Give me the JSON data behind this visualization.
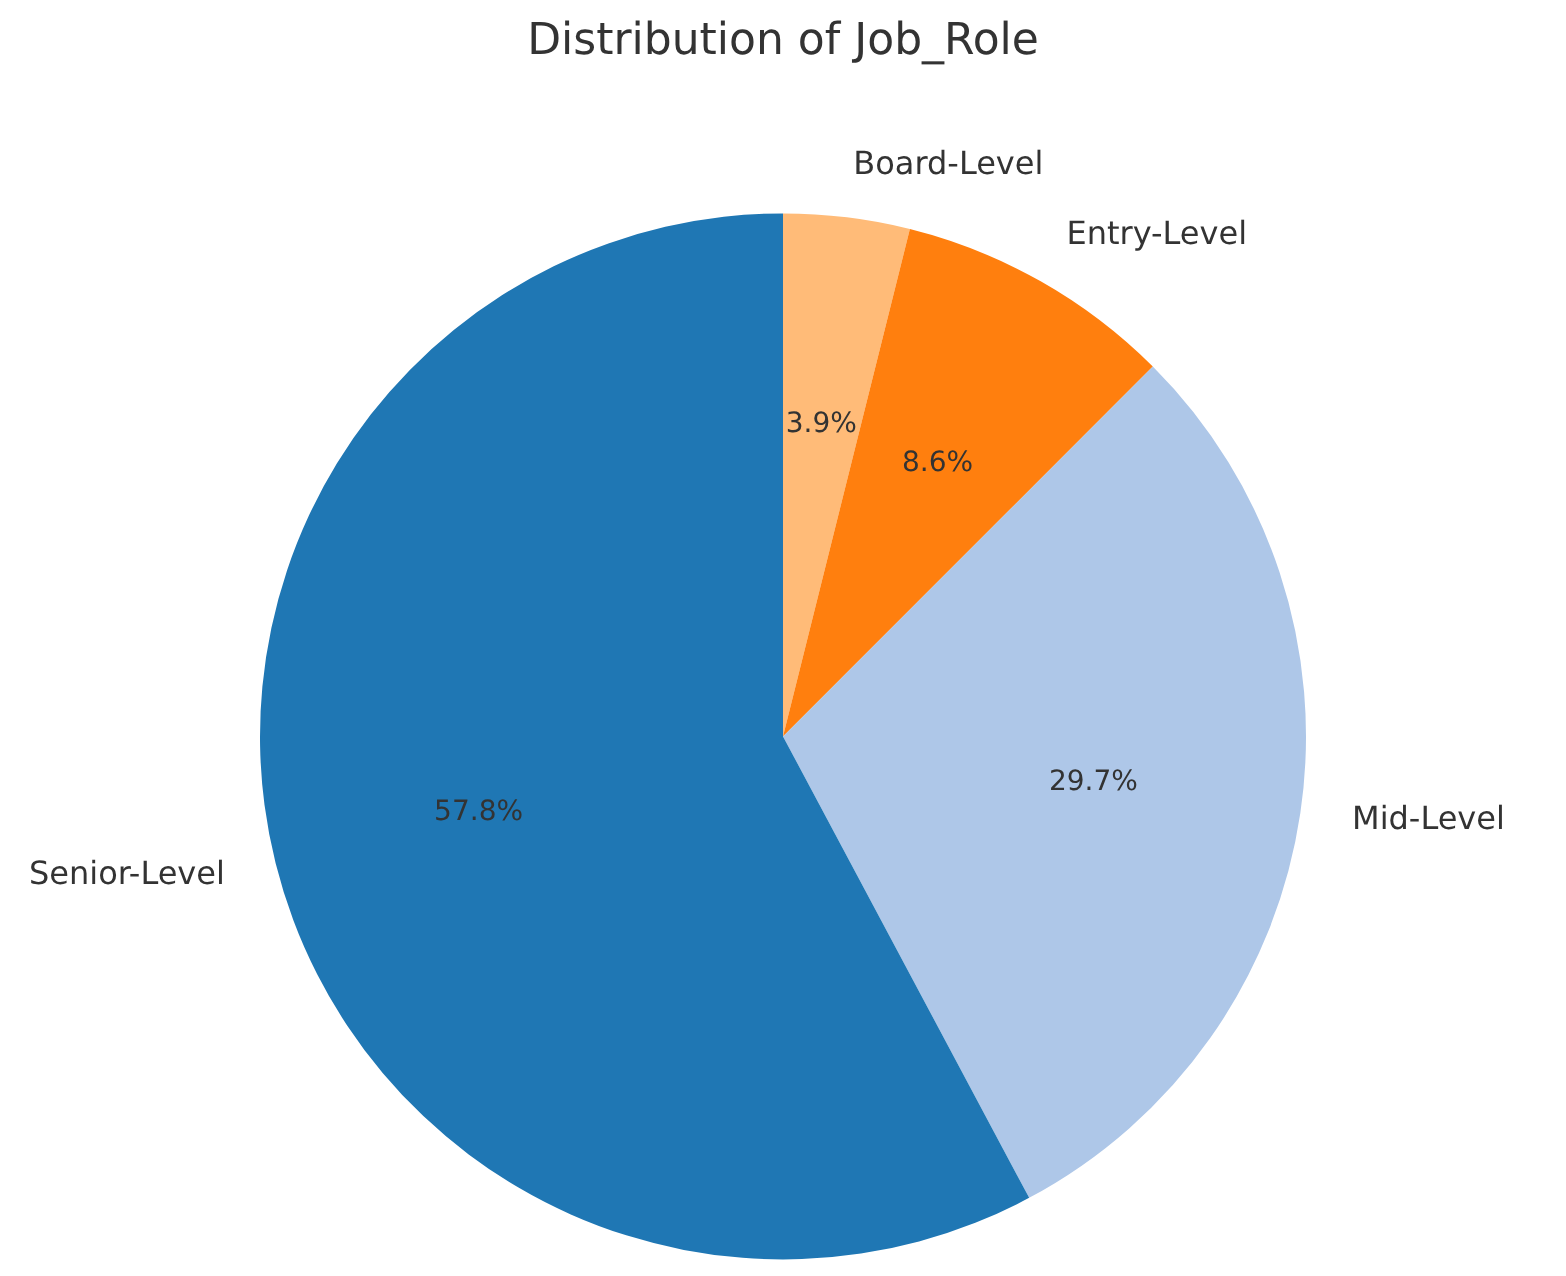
{
  "chart_data": {
    "type": "pie",
    "title": "Distribution of Job_Role",
    "categories": [
      "Board-Level",
      "Entry-Level",
      "Mid-Level",
      "Senior-Level"
    ],
    "values": [
      3.9,
      8.6,
      29.7,
      57.8
    ],
    "colors": [
      "#ffbb78",
      "#ff7f0e",
      "#aec7e8",
      "#1f77b4"
    ],
    "value_labels": [
      "3.9%",
      "8.6%",
      "29.7%",
      "57.8%"
    ],
    "legend": false
  }
}
